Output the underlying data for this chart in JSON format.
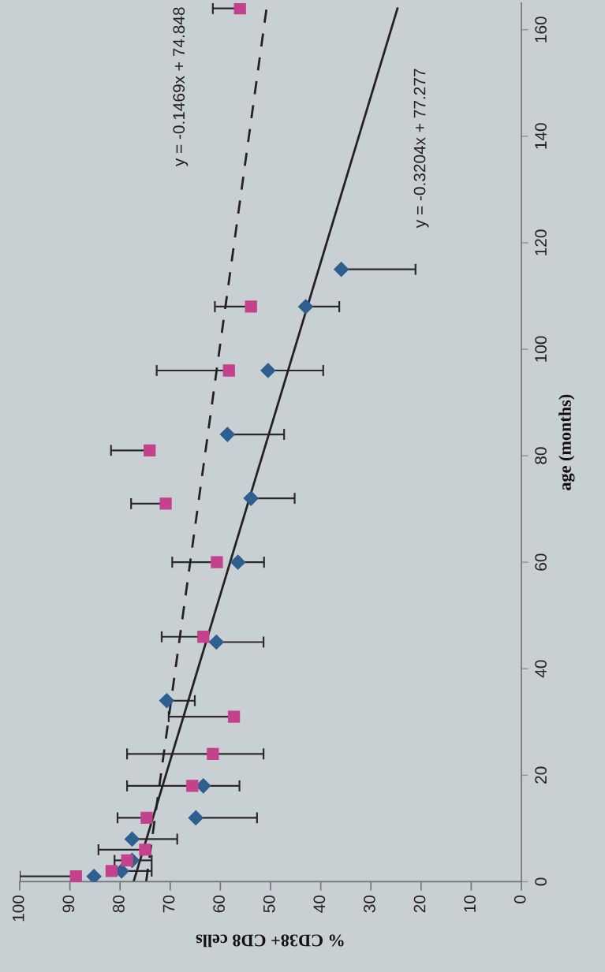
{
  "chart_data": {
    "type": "scatter",
    "xlabel": "% CD38+ CD8 cells",
    "ylabel": "age (months)",
    "xlim": [
      100,
      0
    ],
    "xticks": [
      0,
      10,
      20,
      30,
      40,
      50,
      60,
      70,
      80,
      90,
      100
    ],
    "ylim": [
      0,
      165
    ],
    "yticks": [
      0,
      20,
      40,
      60,
      80,
      100,
      120,
      140,
      160
    ],
    "series": [
      {
        "color": "#2f5f8f",
        "marker": "diamond",
        "values": [
          1,
          2,
          4,
          8,
          12,
          18,
          34,
          45,
          60,
          72,
          84,
          96,
          108,
          115
        ],
        "x": [
          85.2,
          79.7,
          77.6,
          77.6,
          64.9,
          63.4,
          70.7,
          60.8,
          56.5,
          53.9,
          58.6,
          50.5,
          43.0,
          35.9
        ],
        "xerrors": [
          null,
          [
            73.7,
            79.7
          ],
          [
            73.7,
            77.6
          ],
          [
            68.6,
            77.6
          ],
          [
            52.7,
            64.9
          ],
          [
            56.2,
            63.4
          ],
          [
            65.1,
            70.7
          ],
          [
            51.4,
            60.8
          ],
          [
            51.3,
            56.5
          ],
          [
            45.2,
            53.9
          ],
          [
            47.3,
            58.6
          ],
          [
            39.5,
            50.5
          ],
          [
            36.3,
            43.0
          ],
          [
            21.1,
            35.9
          ]
        ]
      },
      {
        "color": "#c4428c",
        "marker": "square",
        "values": [
          1,
          2,
          4,
          6,
          12,
          18,
          24,
          31,
          46,
          60,
          71,
          81,
          96,
          108,
          164
        ],
        "x": [
          88.8,
          81.7,
          78.6,
          75.0,
          74.7,
          65.6,
          61.5,
          57.3,
          63.4,
          60.7,
          70.9,
          74.1,
          58.3,
          53.9,
          56.1
        ],
        "xerrors": [
          [
            88.8,
            100
          ],
          null,
          [
            78.6,
            81.1
          ],
          [
            75.0,
            84.3
          ],
          [
            74.7,
            80.5
          ],
          [
            65.6,
            78.6
          ],
          [
            51.4,
            78.6
          ],
          [
            57.3,
            70.3
          ],
          [
            63.4,
            71.7
          ],
          [
            60.7,
            69.6
          ],
          [
            70.9,
            77.8
          ],
          [
            74.1,
            81.8
          ],
          [
            58.3,
            72.7
          ],
          [
            53.9,
            61.1
          ],
          [
            56.1,
            61.5
          ]
        ]
      },
      {
        "type": "line",
        "color": "#222222",
        "line_style": "dashed",
        "marker": "none",
        "x": [
          74.8,
          50.8
        ],
        "values": [
          0,
          164
        ]
      },
      {
        "type": "line",
        "color": "#222222",
        "line_style": "solid",
        "marker": "none",
        "x": [
          77.3,
          24.7
        ],
        "values": [
          0,
          164
        ]
      }
    ],
    "annotations": [
      "y = -0.1469x + 74.848",
      "y = -0.3204x + 77.277"
    ]
  }
}
